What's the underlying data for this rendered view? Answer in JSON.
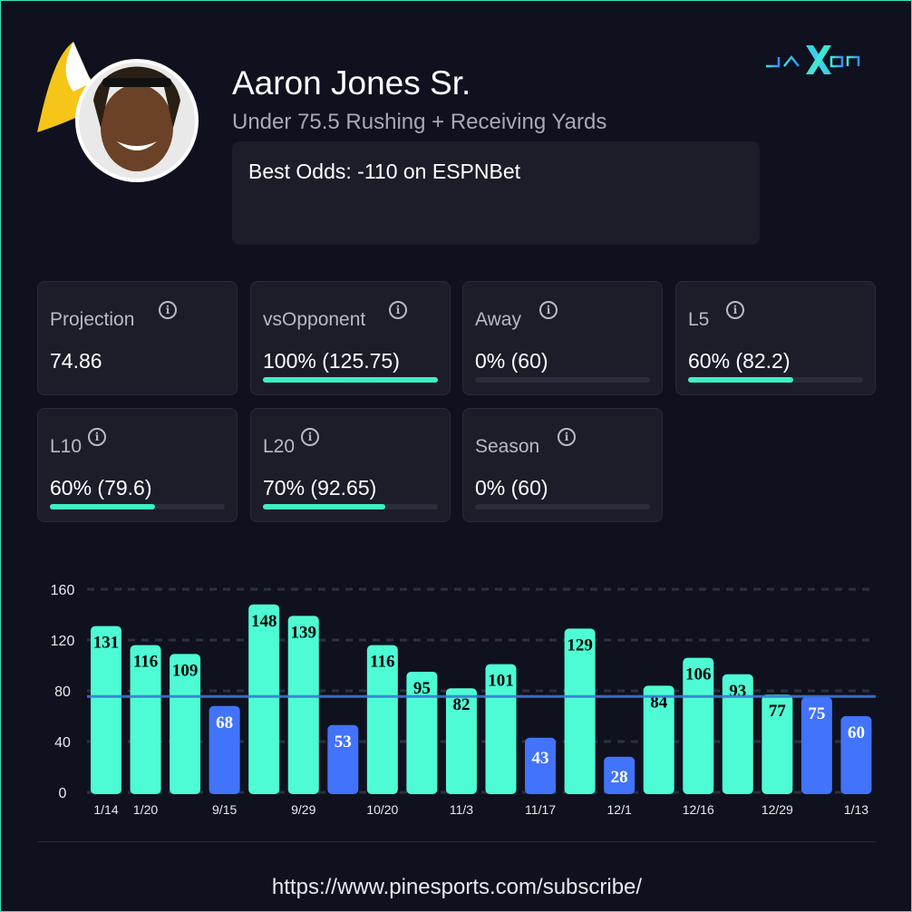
{
  "player": {
    "name": "Aaron Jones Sr.",
    "prop": "Under 75.5 Rushing + Receiving Yards",
    "best_odds": "Best Odds: -110 on ESPNBet"
  },
  "brand": {
    "logo_text": "JAXON"
  },
  "stats": [
    {
      "label": "Projection",
      "value": "74.86",
      "fill": null
    },
    {
      "label": "vsOpponent",
      "value": "100% (125.75)",
      "fill": 100
    },
    {
      "label": "Away",
      "value": "0% (60)",
      "fill": 0
    },
    {
      "label": "L5",
      "value": "60% (82.2)",
      "fill": 60
    },
    {
      "label": "L10",
      "value": "60% (79.6)",
      "fill": 60
    },
    {
      "label": "L20",
      "value": "70% (92.65)",
      "fill": 70
    },
    {
      "label": "Season",
      "value": "0% (60)",
      "fill": 0
    }
  ],
  "colors": {
    "over": "#4dfcd4",
    "under": "#4273fb",
    "line": "#3a78d8",
    "bg": "#0f111e",
    "card": "#1c1d29"
  },
  "chart_data": {
    "type": "bar",
    "values": [
      131,
      116,
      109,
      68,
      148,
      139,
      53,
      116,
      95,
      82,
      101,
      43,
      129,
      28,
      84,
      106,
      93,
      77,
      75,
      60
    ],
    "x_labels": [
      "1/14",
      "1/20",
      "",
      "9/15",
      "",
      "9/29",
      "",
      "10/20",
      "",
      "11/3",
      "",
      "11/17",
      "",
      "12/1",
      "",
      "12/16",
      "",
      "12/29",
      "",
      "1/13"
    ],
    "yticks": [
      0,
      40,
      80,
      120,
      160
    ],
    "ylim": [
      0,
      160
    ],
    "line": 75.5,
    "grid": true
  },
  "footer": {
    "url": "https://www.pinesports.com/subscribe/"
  }
}
